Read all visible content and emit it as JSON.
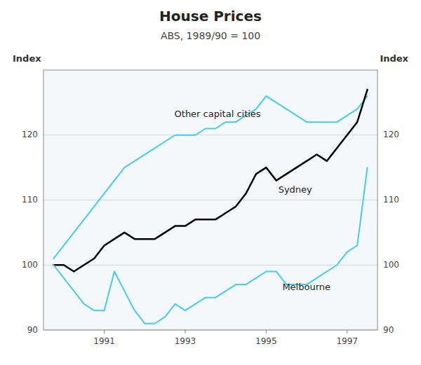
{
  "chart_data": {
    "type": "line",
    "title": "House Prices",
    "subtitle": "ABS, 1989/90 = 100",
    "ylabel": "Index",
    "y2label": "Index",
    "x": [
      1989.75,
      1990.0,
      1990.25,
      1990.5,
      1990.75,
      1991.0,
      1991.25,
      1991.5,
      1991.75,
      1992.0,
      1992.25,
      1992.5,
      1992.75,
      1993.0,
      1993.25,
      1993.5,
      1993.75,
      1994.0,
      1994.25,
      1994.5,
      1994.75,
      1995.0,
      1995.25,
      1995.5,
      1995.75,
      1996.0,
      1996.25,
      1996.5,
      1996.75,
      1997.0,
      1997.25,
      1997.5
    ],
    "series": [
      {
        "color": "#44ccee",
        "values": [
          101,
          103,
          105,
          107,
          109,
          111,
          113,
          115,
          116,
          117,
          118,
          119,
          120,
          120,
          120,
          121,
          121,
          122,
          122,
          123,
          124,
          126,
          125,
          124,
          123,
          122,
          122,
          122,
          122,
          123,
          124,
          126
        ]
      },
      {
        "color": "#000000",
        "values": [
          100,
          100,
          99,
          100,
          101,
          103,
          104,
          105,
          104,
          104,
          104,
          105,
          106,
          106,
          107,
          107,
          107,
          108,
          109,
          111,
          114,
          115,
          113,
          114,
          115,
          116,
          117,
          116,
          118,
          120,
          122,
          127
        ]
      },
      {
        "color": "#44ccee",
        "values": [
          100,
          98,
          96,
          94,
          93,
          93,
          99,
          96,
          93,
          91,
          91,
          92,
          94,
          93,
          94,
          95,
          95,
          96,
          97,
          97,
          98,
          99,
          99,
          97,
          97,
          97,
          98,
          99,
          100,
          102,
          103,
          115
        ]
      }
    ],
    "annotations": [
      {
        "text": "Other capital cities",
        "x": 1993.8,
        "y": 122.5
      },
      {
        "text": "Sydney",
        "x": 1995.3,
        "y": 111.5
      },
      {
        "text": "Melbourne",
        "x": 1995.4,
        "y": 96.5
      }
    ],
    "xlim": [
      1989.5,
      1997.75
    ],
    "xticks": [
      1991,
      1993,
      1995,
      1997
    ],
    "ylim": [
      90,
      130
    ],
    "yticks": [
      90,
      100,
      110,
      120
    ],
    "y2lim": [
      90,
      130
    ],
    "y2ticks": [
      90,
      100,
      110,
      120
    ],
    "grid": true
  }
}
